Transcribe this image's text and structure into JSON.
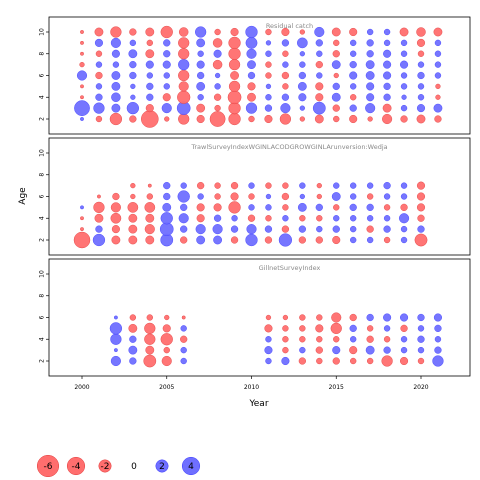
{
  "colors": {
    "positive": "#6f6fff",
    "negative": "#ff6e6e",
    "stroke_positive": "#3a3aff",
    "stroke_negative": "#e03a3a",
    "frame": "#000000",
    "title": "#8a8a8a"
  },
  "chart_data": {
    "type": "scatter",
    "xlabel": "Year",
    "ylabel": "Age",
    "xlim": [
      1998,
      2023
    ],
    "ylim": [
      1,
      11
    ],
    "xticks": [
      2000,
      2005,
      2010,
      2015,
      2020
    ],
    "yticks": [
      2,
      4,
      6,
      8,
      10
    ],
    "grid": false,
    "encoding": "bubble size = |residual|, blue = positive, red = negative",
    "panels": [
      {
        "name": "Residual catch",
        "years": [
          2000,
          2021
        ],
        "ages": [
          2,
          10
        ],
        "residuals": [
          [
            0.1,
            -0.3,
            -1.2,
            -0.4,
            -2.5,
            -0.2,
            -1.0,
            -0.5,
            -2.0,
            -1.2,
            -0.3,
            -0.5,
            -1.0,
            -0.2,
            -0.6,
            -0.3,
            -0.5,
            -0.2,
            -0.8,
            -0.4,
            -0.6,
            -0.4
          ],
          [
            2.0,
            1.0,
            0.6,
            1.2,
            -0.5,
            0.8,
            1.5,
            -0.6,
            -0.3,
            -1.2,
            1.0,
            0.4,
            0.8,
            0.2,
            1.3,
            -0.4,
            0.4,
            0.8,
            -0.6,
            0.3,
            0.5,
            0.6
          ],
          [
            -0.1,
            0.4,
            0.7,
            0.2,
            0.4,
            -0.5,
            -1.4,
            0.3,
            -0.4,
            -1.5,
            -0.6,
            0.3,
            0.4,
            0.5,
            -0.5,
            0.6,
            -0.3,
            0.5,
            0.4,
            0.2,
            0.3,
            -0.2
          ],
          [
            -0.1,
            0.3,
            0.6,
            0.2,
            0.4,
            0.3,
            -0.8,
            0.6,
            0.3,
            -1.0,
            -0.5,
            0.2,
            -0.3,
            0.6,
            -0.5,
            0.4,
            0.3,
            0.5,
            0.4,
            0.3,
            0.3,
            -0.2
          ],
          [
            0.8,
            -0.4,
            0.6,
            0.4,
            0.3,
            0.3,
            -1.0,
            0.4,
            0.2,
            -0.6,
            0.4,
            -0.3,
            -0.4,
            0.4,
            0.3,
            -0.2,
            0.5,
            0.6,
            0.5,
            0.3,
            0.4,
            0.3
          ],
          [
            -0.2,
            0.3,
            0.3,
            0.4,
            0.5,
            0.5,
            1.0,
            0.5,
            -0.7,
            -1.0,
            0.6,
            -0.3,
            0.3,
            0.3,
            -0.4,
            0.6,
            0.4,
            0.6,
            0.5,
            0.5,
            0.3,
            0.3
          ],
          [
            -0.1,
            -0.3,
            0.5,
            0.6,
            -0.6,
            0.4,
            -1.0,
            0.3,
            0.5,
            -1.2,
            0.8,
            0.3,
            -0.3,
            0.2,
            0.3,
            -0.4,
            0.3,
            0.4,
            0.5,
            0.3,
            -0.3,
            0.3
          ],
          [
            -0.1,
            0.5,
            0.8,
            0.3,
            -0.3,
            0.4,
            -1.0,
            0.6,
            -0.7,
            -1.2,
            1.1,
            0.2,
            0.4,
            0.9,
            0.4,
            -0.3,
            0.3,
            0.4,
            0.3,
            0.3,
            -0.5,
            0.3
          ],
          [
            -0.1,
            -0.6,
            -1.0,
            -0.4,
            -0.6,
            -1.2,
            -0.7,
            1.0,
            -0.3,
            -0.5,
            1.2,
            -0.3,
            -0.5,
            -0.2,
            0.8,
            -0.6,
            -0.5,
            0.3,
            0.3,
            -0.6,
            -0.7,
            -0.6
          ]
        ]
      },
      {
        "name": "TrawlSurveyIndexWGINLACODGROWGINLArunversion:Wedja",
        "years": [
          2000,
          2020
        ],
        "ages": [
          2,
          7
        ],
        "residuals": [
          [
            -2.2,
            1.2,
            -0.6,
            -0.6,
            -0.6,
            1.3,
            -0.4,
            0.6,
            0.6,
            -0.4,
            1.2,
            -0.4,
            1.4,
            -0.4,
            -0.4,
            -0.5,
            0.3,
            0.3,
            -0.3,
            0.3,
            -1.3
          ],
          [
            -0.1,
            0.4,
            -0.5,
            -0.6,
            -0.8,
            1.5,
            0.4,
            0.8,
            0.8,
            0.4,
            0.8,
            0.4,
            -0.4,
            0.4,
            0.3,
            0.4,
            0.3,
            -0.4,
            0.4,
            0.3,
            0.4
          ],
          [
            -0.1,
            -0.6,
            -0.9,
            -0.6,
            -0.6,
            1.2,
            0.8,
            -0.5,
            0.4,
            0.3,
            -0.4,
            -0.3,
            0.3,
            -0.3,
            -0.3,
            0.3,
            0.3,
            0.3,
            0.3,
            0.8,
            -0.4
          ],
          [
            0.1,
            -1.0,
            -0.8,
            -0.9,
            -0.9,
            0.6,
            0.4,
            -0.5,
            -0.5,
            -1.2,
            0.3,
            0.3,
            -0.3,
            0.6,
            0.4,
            -0.3,
            0.4,
            0.4,
            -0.3,
            -0.4,
            -0.5
          ],
          [
            null,
            -0.1,
            -0.4,
            -0.2,
            -0.3,
            0.4,
            1.2,
            0.3,
            -0.3,
            -0.5,
            -0.3,
            0.2,
            -0.4,
            0.2,
            -0.2,
            0.6,
            0.3,
            -0.3,
            0.3,
            0.3,
            -0.5
          ],
          [
            null,
            null,
            null,
            -0.2,
            -0.1,
            0.4,
            0.3,
            -0.4,
            -0.3,
            -0.4,
            0.3,
            -0.3,
            -0.3,
            0.3,
            -0.2,
            0.3,
            0.3,
            0.3,
            0.4,
            0.3,
            -0.5
          ]
        ]
      },
      {
        "name": "GillnetSurveyIndex",
        "years": [
          2002,
          2021
        ],
        "ages": [
          2,
          6
        ],
        "missing_years": [
          2006,
          2007,
          2008,
          2009
        ],
        "residuals": [
          [
            0.8,
            0.4,
            -1.3,
            -0.8,
            0.3,
            null,
            null,
            null,
            null,
            0.3,
            0.5,
            -0.4,
            -0.3,
            -0.4,
            -0.3,
            -0.3,
            -1.0,
            -0.5,
            -0.3,
            1.0
          ],
          [
            0.1,
            0.6,
            -0.6,
            -0.3,
            0.3,
            null,
            null,
            null,
            null,
            0.5,
            -0.3,
            0.3,
            -0.4,
            0.5,
            -0.5,
            0.6,
            0.4,
            0.3,
            0.3,
            0.4
          ],
          [
            1.0,
            0.4,
            -1.0,
            -1.2,
            -0.4,
            null,
            null,
            null,
            null,
            0.3,
            -0.3,
            -0.3,
            -0.3,
            -0.3,
            0.3,
            -0.4,
            -0.3,
            0.3,
            0.4,
            0.3
          ],
          [
            1.2,
            -0.6,
            -1.0,
            -0.5,
            0.3,
            null,
            null,
            null,
            null,
            -0.5,
            -0.3,
            -0.3,
            -0.5,
            -1.0,
            0.4,
            -0.3,
            0.3,
            -0.4,
            0.3,
            0.4
          ],
          [
            0.1,
            -0.3,
            -0.3,
            -0.2,
            -0.1,
            null,
            null,
            null,
            null,
            -0.2,
            -0.2,
            -0.3,
            -0.3,
            -0.8,
            -0.4,
            0.4,
            0.5,
            0.5,
            0.4,
            0.5
          ]
        ]
      }
    ],
    "legend": {
      "values": [
        -6,
        -4,
        -2,
        0,
        2,
        4
      ],
      "labels": [
        "-6",
        "-4",
        "-2",
        "0",
        "2",
        "4"
      ]
    }
  }
}
